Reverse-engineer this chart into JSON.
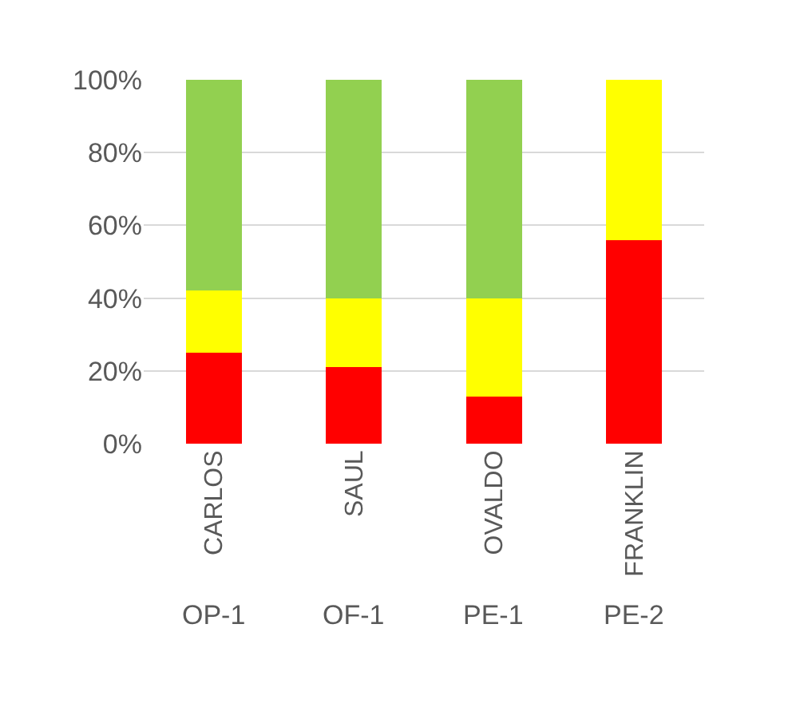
{
  "chart_data": {
    "type": "bar",
    "stacked": true,
    "categories": [
      "CARLOS",
      "SAUL",
      "OVALDO",
      "FRANKLIN"
    ],
    "series": [
      {
        "color": "#ff0000",
        "values": [
          25,
          21,
          13,
          56
        ]
      },
      {
        "color": "#ffff00",
        "values": [
          17,
          19,
          27,
          44
        ]
      },
      {
        "color": "#92d050",
        "values": [
          58,
          60,
          60,
          0
        ]
      }
    ],
    "ylim": [
      0,
      100
    ],
    "yticks": [
      {
        "value": 0,
        "label": "0%"
      },
      {
        "value": 20,
        "label": "20%"
      },
      {
        "value": 40,
        "label": "40%"
      },
      {
        "value": 60,
        "label": "60%"
      },
      {
        "value": 80,
        "label": "80%"
      },
      {
        "value": 100,
        "label": "100%"
      }
    ],
    "grid": "y",
    "annotations": [
      "OP-1",
      "OF-1",
      "PE-1",
      "PE-2"
    ]
  }
}
